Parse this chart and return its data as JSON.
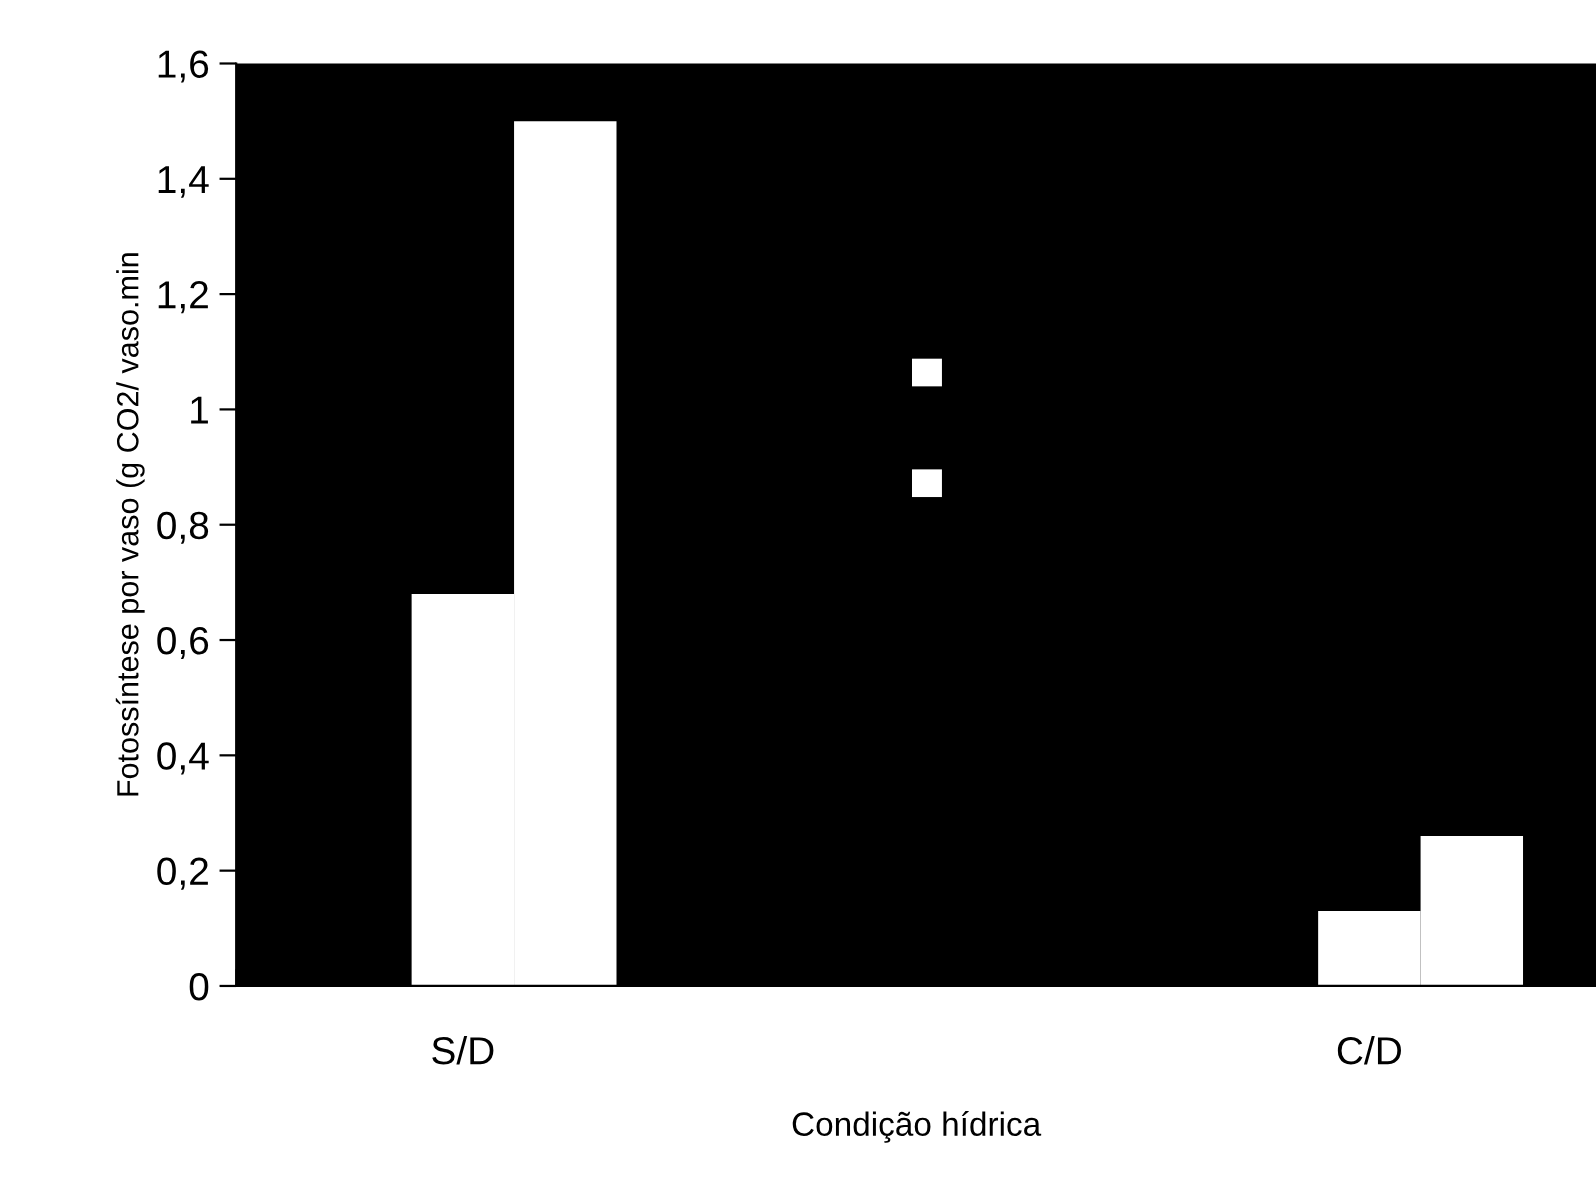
{
  "chart_data": {
    "type": "bar",
    "xlabel": "Condição hídrica",
    "ylabel": "Fotossíntese por vaso (g CO2/ vaso.min",
    "categories": [
      "S/D",
      null,
      "C/D"
    ],
    "series": [
      {
        "color": "#ffffff",
        "values": [
          0.68,
          null,
          0.13
        ]
      },
      {
        "color": "#ffffff",
        "values": [
          1.5,
          null,
          0.26
        ]
      }
    ],
    "ylim": [
      0,
      1.6
    ],
    "yticks": [
      0,
      {
        "value": 0.2,
        "label": "0,2"
      },
      {
        "value": 0.4,
        "label": "0,4"
      },
      {
        "value": 0.6,
        "label": "0,6"
      },
      {
        "value": 0.8,
        "label": "0,8"
      },
      1,
      {
        "value": 1.2,
        "label": "1,2"
      },
      {
        "value": 1.4,
        "label": "1,4"
      },
      {
        "value": 1.6,
        "label": "1,6"
      }
    ],
    "grid": false
  }
}
